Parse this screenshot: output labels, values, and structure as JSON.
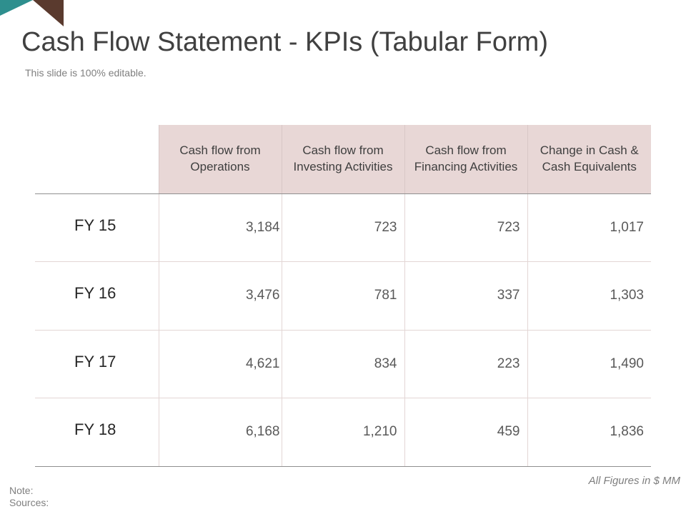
{
  "title": "Cash Flow Statement - KPIs (Tabular Form)",
  "subtitle": "This slide is 100% editable.",
  "colors": {
    "header_fill": "#e8d7d6",
    "corner_teal": "#2e8f8e",
    "corner_brown": "#5a3a2e"
  },
  "table": {
    "columns": [
      "Cash flow from Operations",
      "Cash flow from Investing Activities",
      "Cash flow from Financing Activities",
      "Change in Cash & Cash Equivalents"
    ],
    "rows": [
      {
        "year": "FY 15",
        "values": [
          "3,184",
          "723",
          "723",
          "1,017"
        ]
      },
      {
        "year": "FY 16",
        "values": [
          "3,476",
          "781",
          "337",
          "1,303"
        ]
      },
      {
        "year": "FY 17",
        "values": [
          "4,621",
          "834",
          "223",
          "1,490"
        ]
      },
      {
        "year": "FY 18",
        "values": [
          "6,168",
          "1,210",
          "459",
          "1,836"
        ]
      }
    ]
  },
  "figures_note": "All Figures in $ MM",
  "footnotes": {
    "note": "Note:",
    "sources": "Sources:"
  }
}
